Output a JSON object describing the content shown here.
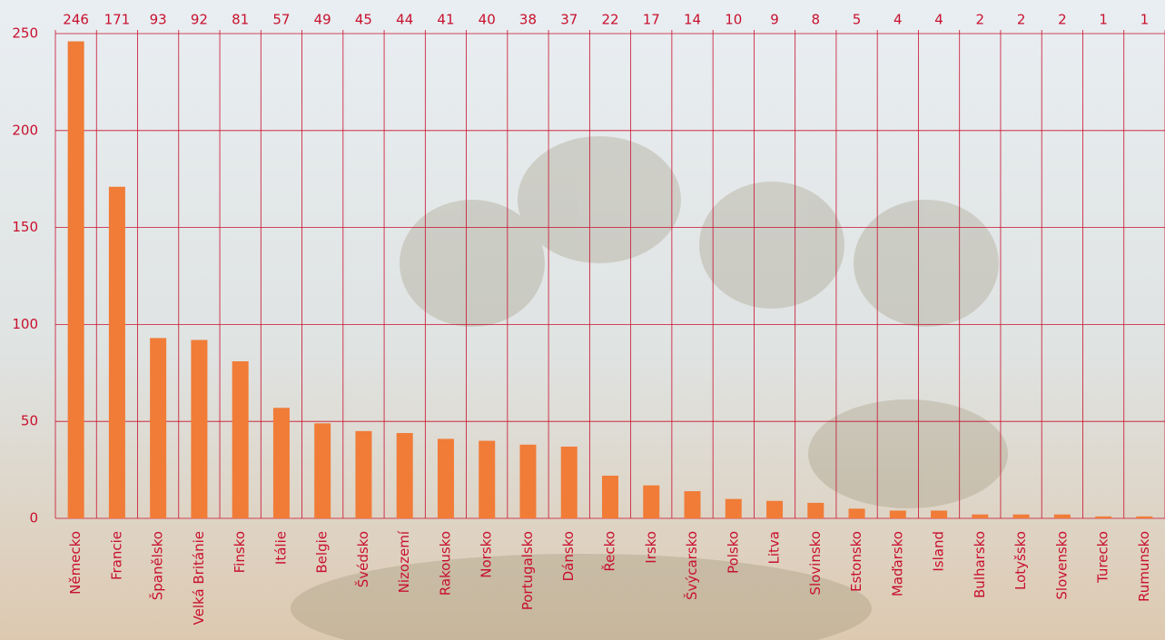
{
  "chart_data": {
    "type": "bar",
    "categories": [
      "Německo",
      "Francie",
      "Španělsko",
      "Velká Británie",
      "Finsko",
      "Itálie",
      "Belgie",
      "Švédsko",
      "Nizozemí",
      "Rakousko",
      "Norsko",
      "Portugalsko",
      "Dánsko",
      "Řecko",
      "Irsko",
      "Švýcarsko",
      "Polsko",
      "Litva",
      "Slovinsko",
      "Estonsko",
      "Maďarsko",
      "Island",
      "Bulharsko",
      "Lotyšsko",
      "Slovensko",
      "Turecko",
      "Rumunsko"
    ],
    "values": [
      246,
      171,
      93,
      92,
      81,
      57,
      49,
      45,
      44,
      41,
      40,
      38,
      37,
      22,
      17,
      14,
      10,
      9,
      8,
      5,
      4,
      4,
      2,
      2,
      2,
      1,
      1
    ],
    "color": "#f07c38",
    "ylim": [
      0,
      250
    ],
    "yticks": [
      0,
      50,
      100,
      150,
      200,
      250
    ],
    "grid": true
  }
}
